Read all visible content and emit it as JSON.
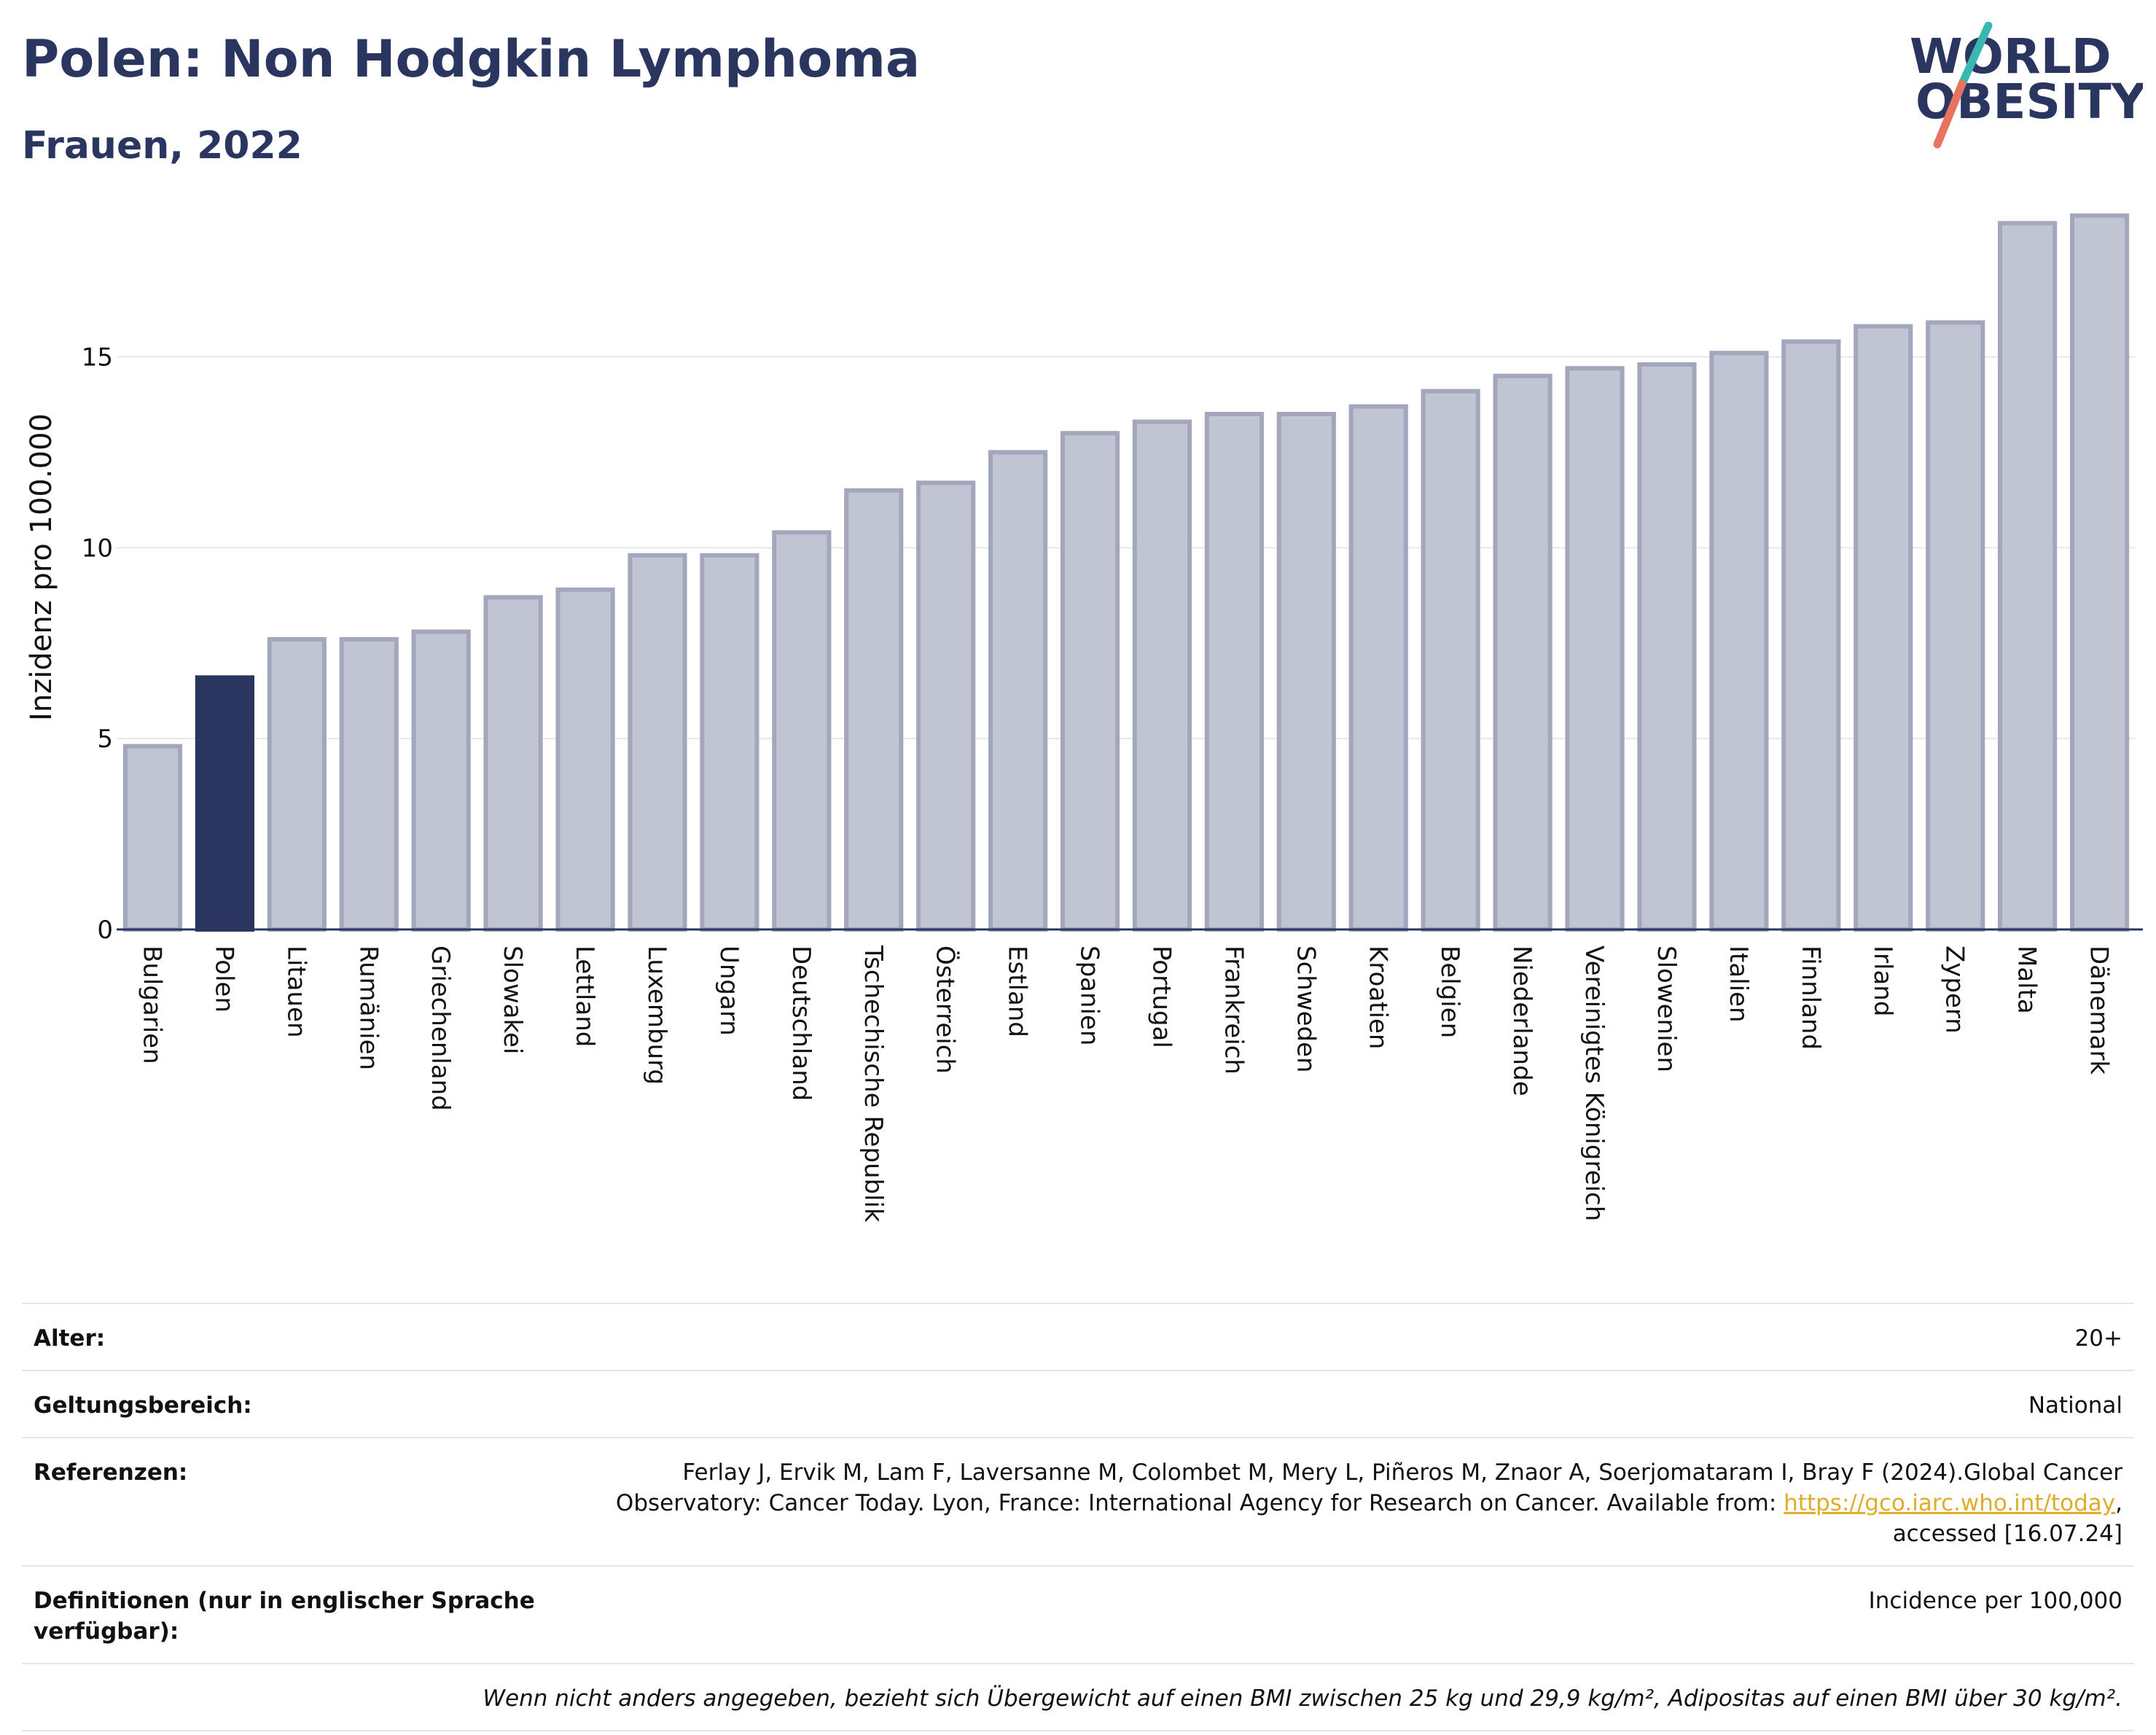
{
  "header": {
    "title": "Polen: Non Hodgkin Lymphoma",
    "subtitle": "Frauen, 2022"
  },
  "logo": {
    "line1": "WORLD",
    "line2": "OBESITY",
    "colors": {
      "text": "#2b3660",
      "slash_top": "#3ab7b0",
      "slash_bottom": "#e8735f"
    }
  },
  "colors": {
    "bar_default": "#c1c4d2",
    "bar_default_border": "#a2a7bc",
    "bar_highlight": "#2b3660",
    "gridline": "#e8e8e8",
    "axis_line": "#2b3660",
    "link": "#e0ac2b"
  },
  "chart_data": {
    "type": "bar",
    "title": "Polen: Non Hodgkin Lymphoma",
    "subtitle": "Frauen, 2022",
    "xlabel": "",
    "ylabel": "Inzidenz pro 100.000",
    "ylim": [
      0,
      19
    ],
    "yticks": [
      0,
      5,
      10,
      15
    ],
    "grid": true,
    "highlight": "Poland",
    "highlight_label": "Poland",
    "categories": [
      "Bulgarien",
      "Polen",
      "Litauen",
      "Rumänien",
      "Griechenland",
      "Slowakei",
      "Lettland",
      "Luxemburg",
      "Ungarn",
      "Deutschland",
      "Tschechische Republik",
      "Österreich",
      "Estland",
      "Spanien",
      "Portugal",
      "Frankreich",
      "Schweden",
      "Kroatien",
      "Belgien",
      "Niederlande",
      "Vereinigtes Königreich",
      "Slowenien",
      "Italien",
      "Finnland",
      "Irland",
      "Zypern",
      "Malta",
      "Dänemark"
    ],
    "values": [
      4.8,
      6.6,
      7.6,
      7.6,
      7.8,
      8.7,
      8.9,
      9.8,
      9.8,
      10.4,
      11.5,
      11.7,
      12.5,
      13.0,
      13.3,
      13.5,
      13.5,
      13.7,
      14.1,
      14.5,
      14.7,
      14.8,
      15.1,
      15.4,
      15.8,
      15.9,
      18.5,
      18.7
    ],
    "highlight_index": 1
  },
  "meta": {
    "rows": [
      {
        "key": "Alter:",
        "value": "20+"
      },
      {
        "key": "Geltungsbereich:",
        "value": "National"
      }
    ],
    "references": {
      "key": "Referenzen:",
      "line1": "Ferlay J, Ervik M, Lam F, Laversanne M, Colombet M, Mery L, Piñeros M, Znaor A, Soerjomataram I, Bray F (2024).Global Cancer",
      "line2_before": "Observatory: Cancer Today. Lyon, France: International Agency for Research on Cancer. Available from: ",
      "link": "https://gco.iarc.who.int/today",
      "line2_after": ",",
      "line3": "accessed [16.07.24]"
    },
    "definitions": {
      "key": "Definitionen (nur in englischer Sprache verfügbar):",
      "value": "Incidence per 100,000"
    },
    "note": "Wenn nicht anders angegeben, bezieht sich Übergewicht auf einen BMI zwischen 25 kg und 29,9 kg/m², Adipositas auf einen BMI über 30 kg/m²."
  }
}
